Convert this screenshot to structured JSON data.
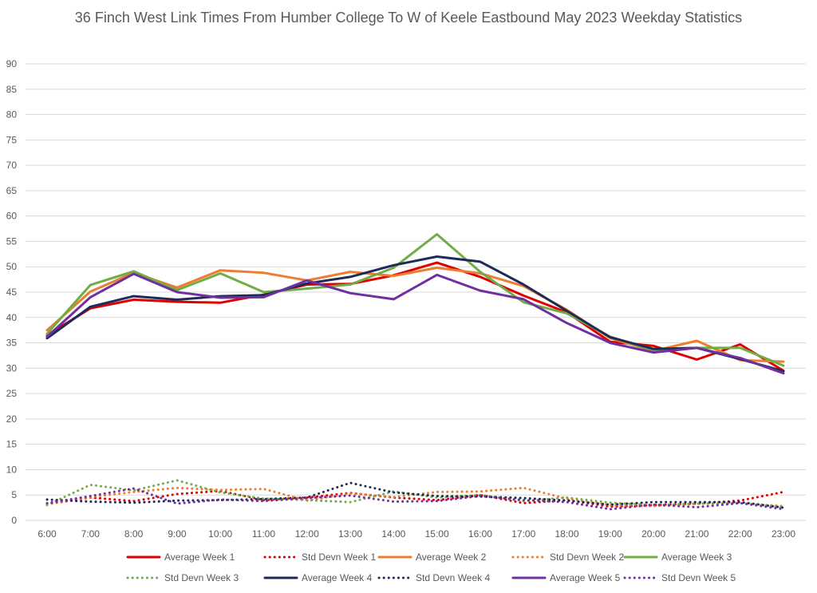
{
  "chart_data": {
    "type": "line",
    "title": "36 Finch West Link Times From Humber College To W of Keele Eastbound May 2023 Weekday Statistics",
    "xlabel": "",
    "ylabel": "",
    "categories": [
      "6:00",
      "7:00",
      "8:00",
      "9:00",
      "10:00",
      "11:00",
      "12:00",
      "13:00",
      "14:00",
      "15:00",
      "16:00",
      "17:00",
      "18:00",
      "19:00",
      "20:00",
      "21:00",
      "22:00",
      "23:00"
    ],
    "ylim": [
      0,
      90
    ],
    "yticks": [
      0,
      5,
      10,
      15,
      20,
      25,
      30,
      35,
      40,
      45,
      50,
      55,
      60,
      65,
      70,
      75,
      80,
      85,
      90
    ],
    "grid": true,
    "legend_position": "bottom",
    "series": [
      {
        "name": "Average Week 1",
        "color": "#e00000",
        "style": "solid",
        "values": [
          36.5,
          41.8,
          43.5,
          43.1,
          42.9,
          44.5,
          46.5,
          46.6,
          48.3,
          50.8,
          48.0,
          44.3,
          41.0,
          35.2,
          34.4,
          31.7,
          34.7,
          29.5
        ]
      },
      {
        "name": "Std Devn Week 1",
        "color": "#e00000",
        "style": "dotted",
        "values": [
          3.2,
          4.5,
          3.8,
          5.2,
          5.8,
          4.0,
          4.5,
          5.4,
          4.5,
          4.0,
          5.0,
          3.4,
          4.0,
          2.7,
          3.0,
          3.3,
          3.9,
          5.6
        ]
      },
      {
        "name": "Average Week 2",
        "color": "#ed7d31",
        "style": "solid",
        "values": [
          37.5,
          45.1,
          48.8,
          45.9,
          49.3,
          48.8,
          47.3,
          49.0,
          48.2,
          49.8,
          48.7,
          46.2,
          41.5,
          35.9,
          33.4,
          35.4,
          31.6,
          31.3
        ]
      },
      {
        "name": "Std Devn Week 2",
        "color": "#ed7d31",
        "style": "dotted",
        "values": [
          3.3,
          4.6,
          5.6,
          6.4,
          6.0,
          6.2,
          3.9,
          5.3,
          4.6,
          5.6,
          5.7,
          6.4,
          4.3,
          3.0,
          2.8,
          3.3,
          3.4,
          2.8
        ]
      },
      {
        "name": "Average Week 3",
        "color": "#70ad47",
        "style": "solid",
        "values": [
          36.8,
          46.4,
          49.1,
          45.4,
          48.7,
          45.0,
          45.7,
          46.5,
          49.8,
          56.4,
          49.0,
          43.0,
          40.8,
          36.2,
          33.5,
          34.0,
          34.0,
          30.5
        ]
      },
      {
        "name": "Std Devn Week 3",
        "color": "#70ad47",
        "style": "dotted",
        "values": [
          3.0,
          7.0,
          5.9,
          7.9,
          5.5,
          4.3,
          4.0,
          3.6,
          5.7,
          4.5,
          5.0,
          3.8,
          4.5,
          3.5,
          3.0,
          3.3,
          3.4,
          2.6
        ]
      },
      {
        "name": "Average Week 4",
        "color": "#1f2a5a",
        "style": "solid",
        "values": [
          35.9,
          42.1,
          44.2,
          43.5,
          44.2,
          44.4,
          46.7,
          48.0,
          50.3,
          52.0,
          51.0,
          46.5,
          41.3,
          36.1,
          33.8,
          34.0,
          31.8,
          29.4
        ]
      },
      {
        "name": "Std Devn Week 4",
        "color": "#1f2a5a",
        "style": "dotted",
        "values": [
          4.1,
          3.7,
          3.5,
          3.9,
          4.0,
          4.2,
          4.5,
          7.4,
          5.5,
          4.8,
          4.7,
          4.4,
          3.9,
          3.1,
          3.6,
          3.6,
          3.6,
          2.5
        ]
      },
      {
        "name": "Average Week 5",
        "color": "#7030a0",
        "style": "solid",
        "values": [
          36.2,
          44.0,
          48.6,
          45.0,
          43.9,
          44.0,
          47.3,
          44.8,
          43.6,
          48.4,
          45.3,
          43.6,
          38.9,
          35.0,
          33.1,
          34.0,
          32.0,
          29.0
        ]
      },
      {
        "name": "Std Devn Week 5",
        "color": "#7030a0",
        "style": "dotted",
        "values": [
          3.4,
          4.8,
          6.3,
          3.3,
          4.1,
          3.8,
          4.4,
          4.9,
          3.7,
          3.8,
          4.8,
          4.0,
          3.6,
          2.2,
          3.1,
          2.6,
          3.4,
          2.2
        ]
      }
    ]
  }
}
